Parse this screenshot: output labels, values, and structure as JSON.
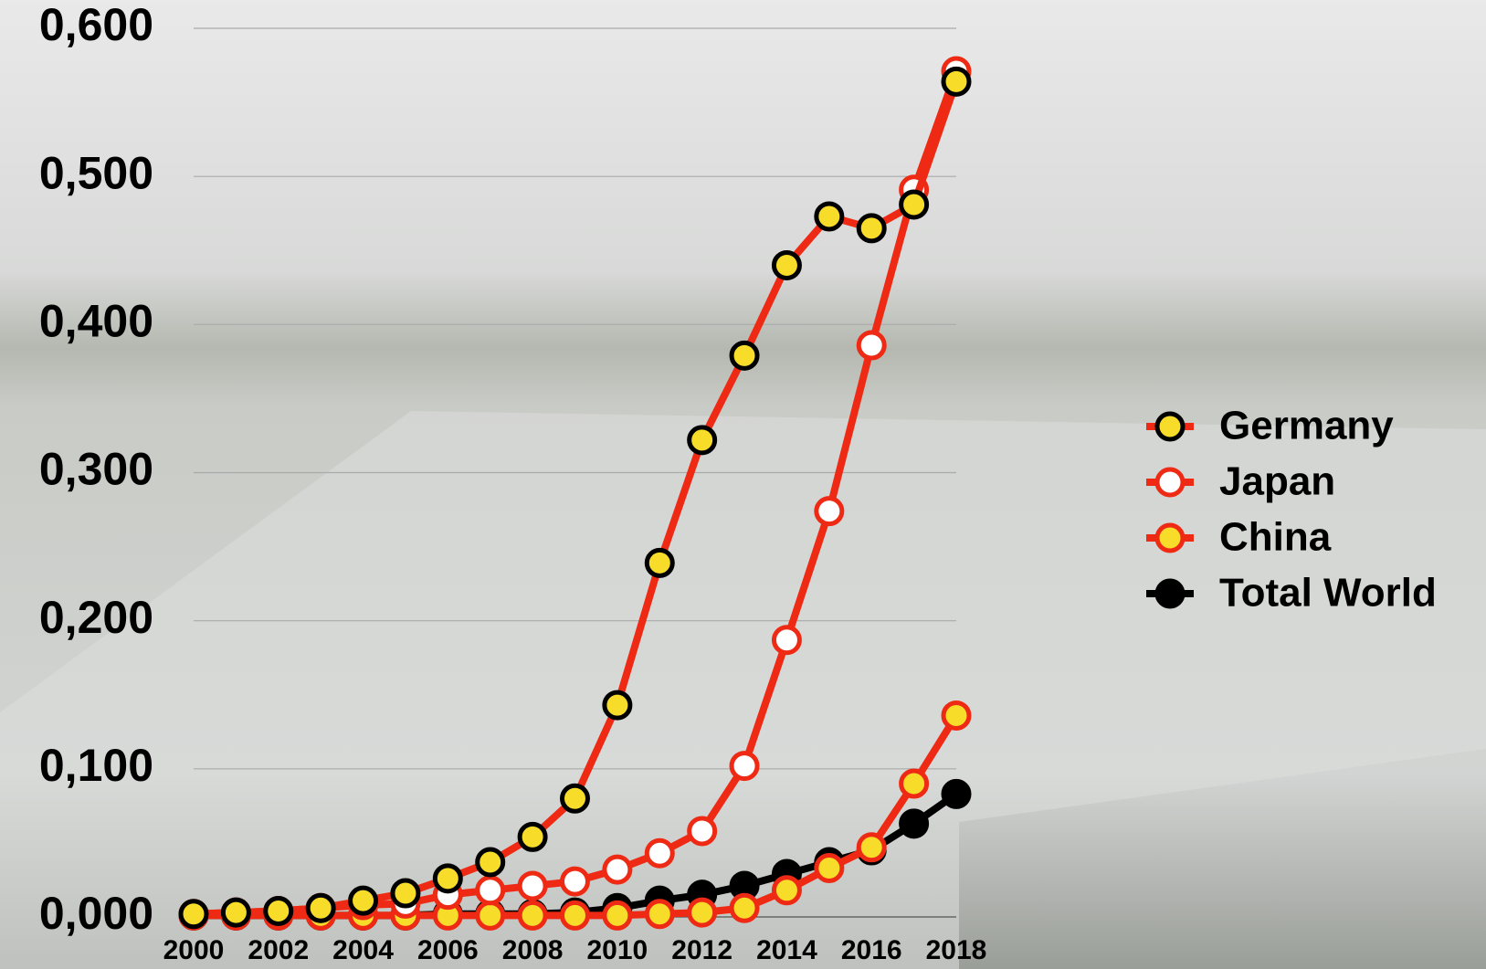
{
  "chart_data": {
    "type": "line",
    "x": [
      2000,
      2001,
      2002,
      2003,
      2004,
      2005,
      2006,
      2007,
      2008,
      2009,
      2010,
      2011,
      2012,
      2013,
      2014,
      2015,
      2016,
      2017,
      2018
    ],
    "series": [
      {
        "name": "Germany",
        "color": "#ee2a14",
        "marker_color": "#f7dc2a",
        "edge_color": "#000000",
        "values": [
          0.002,
          0.003,
          0.004,
          0.006,
          0.011,
          0.016,
          0.026,
          0.037,
          0.054,
          0.08,
          0.143,
          0.239,
          0.322,
          0.379,
          0.44,
          0.473,
          0.465,
          0.481,
          0.564
        ]
      },
      {
        "name": "Japan",
        "color": "#ee2a14",
        "marker_color": "#ffffff",
        "edge_color": "#ee2a14",
        "values": [
          0.002,
          0.003,
          0.004,
          0.006,
          0.008,
          0.009,
          0.015,
          0.018,
          0.021,
          0.024,
          0.032,
          0.043,
          0.058,
          0.102,
          0.187,
          0.274,
          0.386,
          0.491,
          0.571
        ]
      },
      {
        "name": "China",
        "color": "#ee2a14",
        "marker_color": "#f7dc2a",
        "edge_color": "#ee2a14",
        "values": [
          0.001,
          0.001,
          0.001,
          0.001,
          0.001,
          0.001,
          0.001,
          0.001,
          0.001,
          0.001,
          0.001,
          0.002,
          0.003,
          0.006,
          0.018,
          0.033,
          0.047,
          0.09,
          0.136
        ]
      },
      {
        "name": "Total World",
        "color": "#000000",
        "marker_color": "#000000",
        "edge_color": "#000000",
        "values": [
          0.001,
          0.001,
          0.001,
          0.001,
          0.001,
          0.001,
          0.002,
          0.002,
          0.002,
          0.003,
          0.006,
          0.011,
          0.015,
          0.021,
          0.029,
          0.037,
          0.045,
          0.063,
          0.083
        ]
      }
    ],
    "xlim": [
      2000,
      2018
    ],
    "xticks": [
      2000,
      2002,
      2004,
      2006,
      2008,
      2010,
      2012,
      2014,
      2016,
      2018
    ],
    "ylim": [
      0,
      0.6
    ],
    "yticks": [
      {
        "value": 0,
        "label": "0,000"
      },
      {
        "value": 0.1,
        "label": "0,100"
      },
      {
        "value": 0.2,
        "label": "0,200"
      },
      {
        "value": 0.3,
        "label": "0,300"
      },
      {
        "value": 0.4,
        "label": "0,400"
      },
      {
        "value": 0.5,
        "label": "0,500"
      },
      {
        "value": 0.6,
        "label": "0,600"
      }
    ],
    "grid": true,
    "legend": "right"
  }
}
